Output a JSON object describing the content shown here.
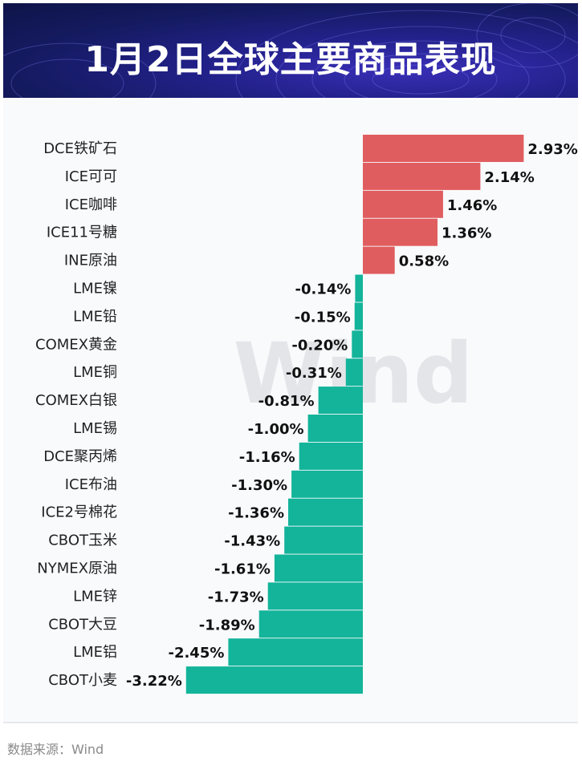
{
  "header": {
    "title": "1月2日全球主要商品表现"
  },
  "watermark": {
    "text": "Wind"
  },
  "footer": {
    "source": "数据来源：Wind"
  },
  "colors": {
    "positive": "#e05d5f",
    "negative": "#13b49a",
    "banner": "#1a1f6b"
  },
  "chart_data": {
    "type": "bar",
    "orientation": "horizontal",
    "title": "1月2日全球主要商品表现",
    "unit": "%",
    "categories": [
      "DCE铁矿石",
      "ICE可可",
      "ICE咖啡",
      "ICE11号糖",
      "INE原油",
      "LME镍",
      "LME铅",
      "COMEX黄金",
      "LME铜",
      "COMEX白银",
      "LME锡",
      "DCE聚丙烯",
      "ICE布油",
      "ICE2号棉花",
      "CBOT玉米",
      "NYMEX原油",
      "LME锌",
      "CBOT大豆",
      "LME铝",
      "CBOT小麦"
    ],
    "values": [
      2.93,
      2.14,
      1.46,
      1.36,
      0.58,
      -0.14,
      -0.15,
      -0.2,
      -0.31,
      -0.81,
      -1.0,
      -1.16,
      -1.3,
      -1.36,
      -1.43,
      -1.61,
      -1.73,
      -1.89,
      -2.45,
      -3.22
    ],
    "value_labels": [
      "2.93%",
      "2.14%",
      "1.46%",
      "1.36%",
      "0.58%",
      "-0.14%",
      "-0.15%",
      "-0.20%",
      "-0.31%",
      "-0.81%",
      "-1.00%",
      "-1.16%",
      "-1.30%",
      "-1.36%",
      "-1.43%",
      "-1.61%",
      "-1.73%",
      "-1.89%",
      "-2.45%",
      "-3.22%"
    ],
    "grid": false,
    "legend": "none"
  }
}
